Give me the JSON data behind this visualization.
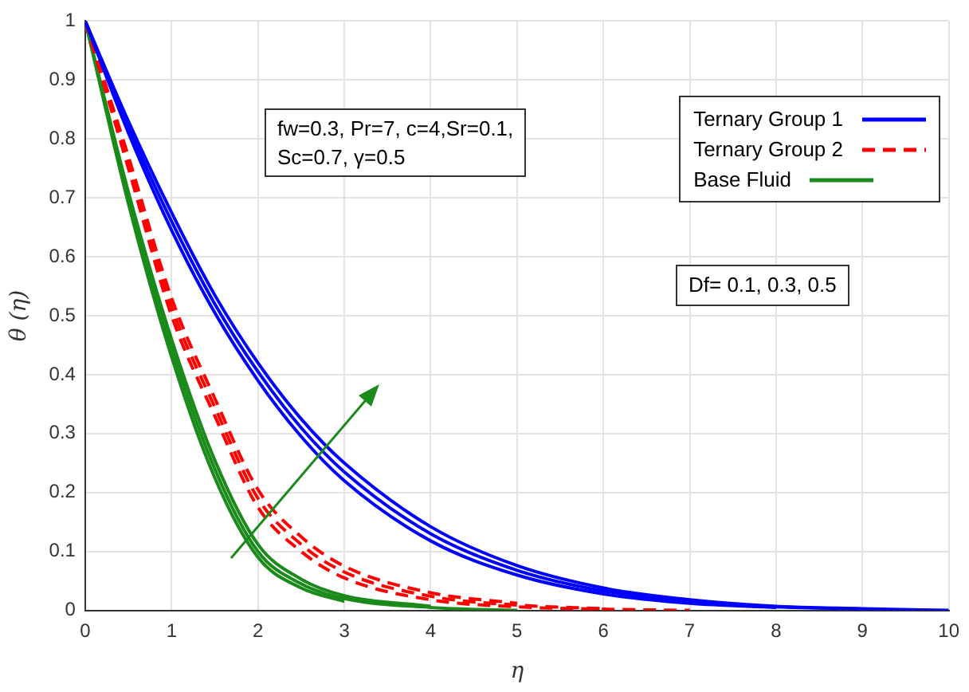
{
  "chart_data": {
    "type": "line",
    "xlabel": "η",
    "ylabel": "θ (η)",
    "xlim": [
      0,
      10
    ],
    "ylim": [
      0,
      1
    ],
    "xticks": [
      0,
      1,
      2,
      3,
      4,
      5,
      6,
      7,
      8,
      9,
      10
    ],
    "yticks": [
      0,
      0.1,
      0.2,
      0.3,
      0.4,
      0.5,
      0.6,
      0.7,
      0.8,
      0.9,
      1
    ],
    "grid": true,
    "legend": "top right",
    "marker": "none",
    "x": [
      0,
      0.5,
      1,
      1.5,
      2,
      2.5,
      3,
      4,
      5,
      6,
      7,
      8,
      9,
      10
    ],
    "series": [
      {
        "name": "Ternary Group 1",
        "color": "#0000ff",
        "line_style": "solid",
        "values": [
          1,
          0.81,
          0.645,
          0.505,
          0.39,
          0.295,
          0.22,
          0.118,
          0.06,
          0.028,
          0.012,
          0.005,
          null,
          null
        ]
      },
      {
        "color": "#0000ff",
        "line_style": "solid",
        "values": [
          1,
          0.82,
          0.66,
          0.52,
          0.405,
          0.31,
          0.235,
          0.13,
          0.068,
          0.033,
          0.015,
          0.006,
          0.002,
          null
        ]
      },
      {
        "color": "#0000ff",
        "line_style": "solid",
        "values": [
          1,
          0.83,
          0.675,
          0.535,
          0.42,
          0.325,
          0.25,
          0.142,
          0.076,
          0.038,
          0.018,
          0.007,
          0.003,
          0
        ]
      },
      {
        "name": "Ternary Group 2",
        "color": "#ff0000",
        "line_style": "dashed",
        "values": [
          1,
          0.75,
          0.5,
          0.33,
          0.175,
          0.1,
          0.055,
          0.018,
          0.006,
          0.002,
          0,
          null,
          null,
          null
        ]
      },
      {
        "color": "#ff0000",
        "line_style": "dashed",
        "values": [
          1,
          0.76,
          0.515,
          0.345,
          0.19,
          0.112,
          0.065,
          0.024,
          0.009,
          0.003,
          null,
          null,
          null,
          null
        ]
      },
      {
        "color": "#ff0000",
        "line_style": "dashed",
        "values": [
          1,
          0.77,
          0.53,
          0.36,
          0.205,
          0.125,
          0.075,
          0.03,
          0.012,
          null,
          null,
          null,
          null,
          null
        ]
      },
      {
        "name": "Base Fluid",
        "color": "#1a8a1a",
        "line_style": "solid",
        "values": [
          1,
          0.69,
          0.43,
          0.225,
          0.09,
          0.038,
          0.015,
          null,
          null,
          null,
          null,
          null,
          null,
          null
        ]
      },
      {
        "color": "#1a8a1a",
        "line_style": "solid",
        "values": [
          1,
          0.7,
          0.445,
          0.24,
          0.1,
          0.045,
          0.02,
          0.005,
          0,
          null,
          null,
          null,
          null,
          null
        ]
      },
      {
        "color": "#1a8a1a",
        "line_style": "solid",
        "values": [
          1,
          0.71,
          0.46,
          0.255,
          0.112,
          0.053,
          0.025,
          0.007,
          null,
          null,
          null,
          null,
          null,
          null
        ]
      }
    ],
    "annotations": [
      "fw=0.3, Pr=7, c=4,Sr=0.1,\nSc=0.7, γ=0.5",
      "Df= 0.1, 0.3, 0.5"
    ]
  }
}
